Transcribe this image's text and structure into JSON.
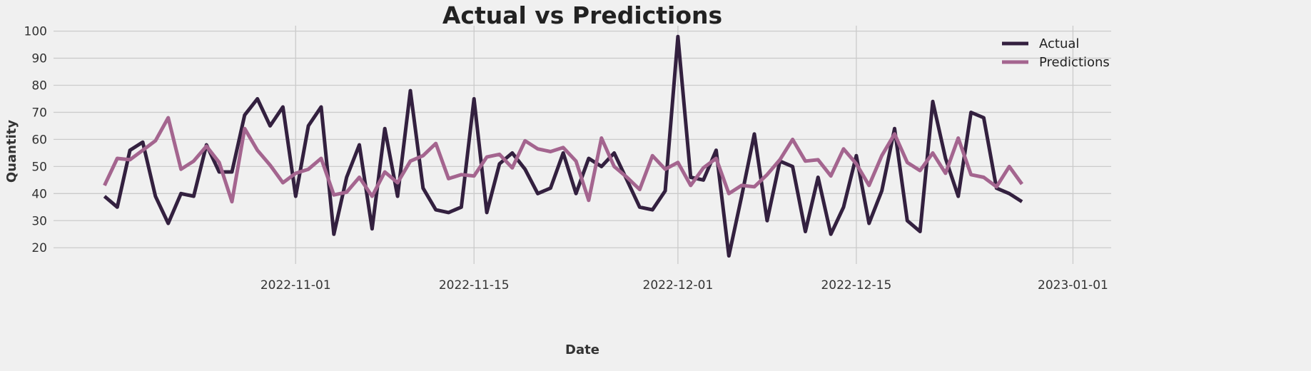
{
  "chart_data": {
    "type": "line",
    "title": "Actual vs Predictions",
    "xlabel": "Date",
    "ylabel": "Quantity",
    "x_start": "2022-10-17",
    "x_step_days": 1,
    "xlim": [
      "2022-10-13",
      "2023-01-04"
    ],
    "ylim": [
      14,
      102
    ],
    "x_ticks": [
      "2022-11-01",
      "2022-11-15",
      "2022-12-01",
      "2022-12-15",
      "2023-01-01"
    ],
    "y_ticks": [
      20,
      30,
      40,
      50,
      60,
      70,
      80,
      90,
      100
    ],
    "grid": true,
    "legend_position": "top-right",
    "series": [
      {
        "name": "Actual",
        "color": "#33203f",
        "values": [
          39,
          35,
          56,
          59,
          39,
          29,
          40,
          39,
          58,
          48,
          48,
          69,
          75,
          65,
          72,
          39,
          65,
          72,
          25,
          46,
          58,
          27,
          64,
          39,
          78,
          42,
          34,
          33,
          35,
          75,
          33,
          51,
          55,
          49,
          40,
          42,
          55,
          40,
          53,
          50,
          55,
          45,
          35,
          34,
          41,
          98,
          46,
          45,
          56,
          17,
          39,
          62,
          30,
          52,
          50,
          26,
          46,
          25,
          35,
          54,
          29,
          41,
          64,
          30,
          26,
          74,
          53,
          39,
          70,
          68,
          42,
          40,
          37
        ]
      },
      {
        "name": "Predictions",
        "color": "#a4658f",
        "values": [
          43,
          53,
          52.5,
          56,
          59.5,
          68,
          49,
          52,
          57.5,
          51.5,
          37,
          64,
          56,
          50.5,
          44,
          47.5,
          49,
          53,
          39.5,
          40.5,
          46,
          39,
          48,
          44,
          52,
          54,
          58.5,
          45.5,
          47,
          46.5,
          53.5,
          54.5,
          49.5,
          59.5,
          56.5,
          55.5,
          57,
          52,
          37.5,
          60.5,
          50,
          46,
          41.5,
          54,
          49,
          51.5,
          43,
          49.5,
          53,
          40,
          43,
          42.5,
          47,
          52.5,
          60,
          52,
          52.5,
          46.5,
          56.5,
          51,
          43,
          54,
          62,
          51.5,
          48.5,
          55,
          47.5,
          60.5,
          47,
          46,
          42.5,
          50,
          43.5
        ]
      }
    ]
  }
}
